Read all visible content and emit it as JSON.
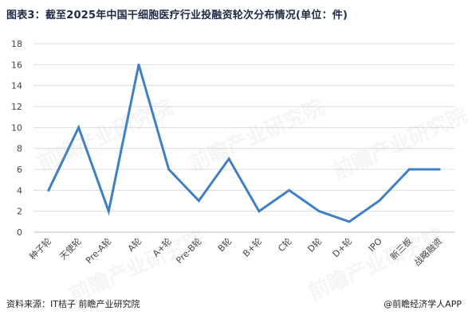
{
  "title": "图表3：截至2025年中国干细胞医疗行业投融资轮次分布情况(单位：件)",
  "source": "资料来源：IT桔子 前瞻产业研究院",
  "credit": "@前瞻经济学人APP",
  "watermark": "前瞻产业研究院",
  "colors": {
    "line": "#3f7fc4",
    "grid": "#dcdcdc",
    "text": "#444444"
  },
  "chart_data": {
    "type": "line",
    "title": "图表3：截至2025年中国干细胞医疗行业投融资轮次分布情况(单位：件)",
    "xlabel": "",
    "ylabel": "",
    "ylim": [
      0,
      18
    ],
    "yticks": [
      0,
      2,
      4,
      6,
      8,
      10,
      12,
      14,
      16,
      18
    ],
    "grid": true,
    "legend": "none",
    "categories": [
      "种子轮",
      "天使轮",
      "Pre-A轮",
      "A轮",
      "A+轮",
      "Pre-B轮",
      "B轮",
      "B+轮",
      "C轮",
      "D轮",
      "D+轮",
      "IPO",
      "新三板",
      "战略融资"
    ],
    "series": [
      {
        "values": [
          4,
          10,
          2,
          16,
          6,
          3,
          7,
          2,
          4,
          2,
          1,
          3,
          6,
          6
        ]
      }
    ]
  }
}
